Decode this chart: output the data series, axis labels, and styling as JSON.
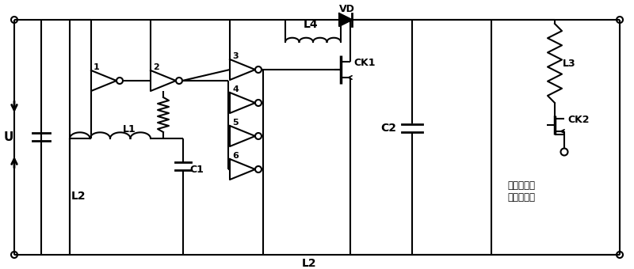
{
  "bg_color": "#ffffff",
  "line_color": "#000000",
  "labels": {
    "U": "U",
    "L1": "L1",
    "L2_bottom": "L2",
    "L2_inner": "L2",
    "L3": "L3",
    "L4": "L4",
    "C1": "C1",
    "C2": "C2",
    "CK1": "CK1",
    "CK2": "CK2",
    "VD": "VD",
    "output": "输出端口，\n与电源相连",
    "n1": "1",
    "n2": "2",
    "n3": "3",
    "n4": "4",
    "n5": "5",
    "n6": "6"
  }
}
